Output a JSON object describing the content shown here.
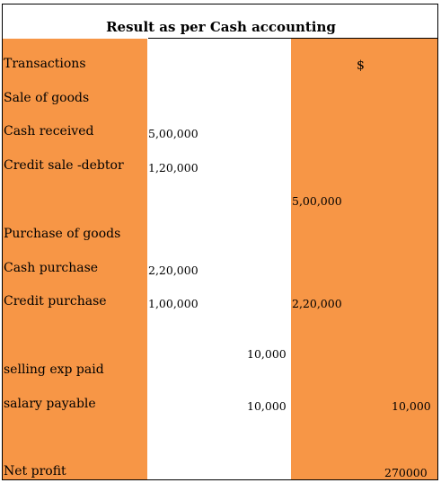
{
  "title": "Result as per Cash accounting",
  "header": {
    "label": "Transactions",
    "currency": "$"
  },
  "rows": {
    "sale_of_goods": "Sale of goods",
    "cash_received": {
      "label": "Cash received",
      "value": "5,00,000"
    },
    "credit_sale": {
      "label": "Credit sale -debtor",
      "value": "1,20,000"
    },
    "sales_total": "5,00,000",
    "purchase_of_goods": "Purchase of goods",
    "cash_purchase": {
      "label": "Cash purchase",
      "value": "2,20,000"
    },
    "credit_purchase": {
      "label": "Credit purchase",
      "value": "1,00,000",
      "total": "2,20,000"
    },
    "selling_exp": {
      "label": "selling exp paid",
      "value": "10,000"
    },
    "salary_payable": {
      "label": "salary payable",
      "value": "10,000",
      "total": "10,000"
    },
    "net_profit": {
      "label": "Net profit",
      "value": "270000"
    }
  }
}
